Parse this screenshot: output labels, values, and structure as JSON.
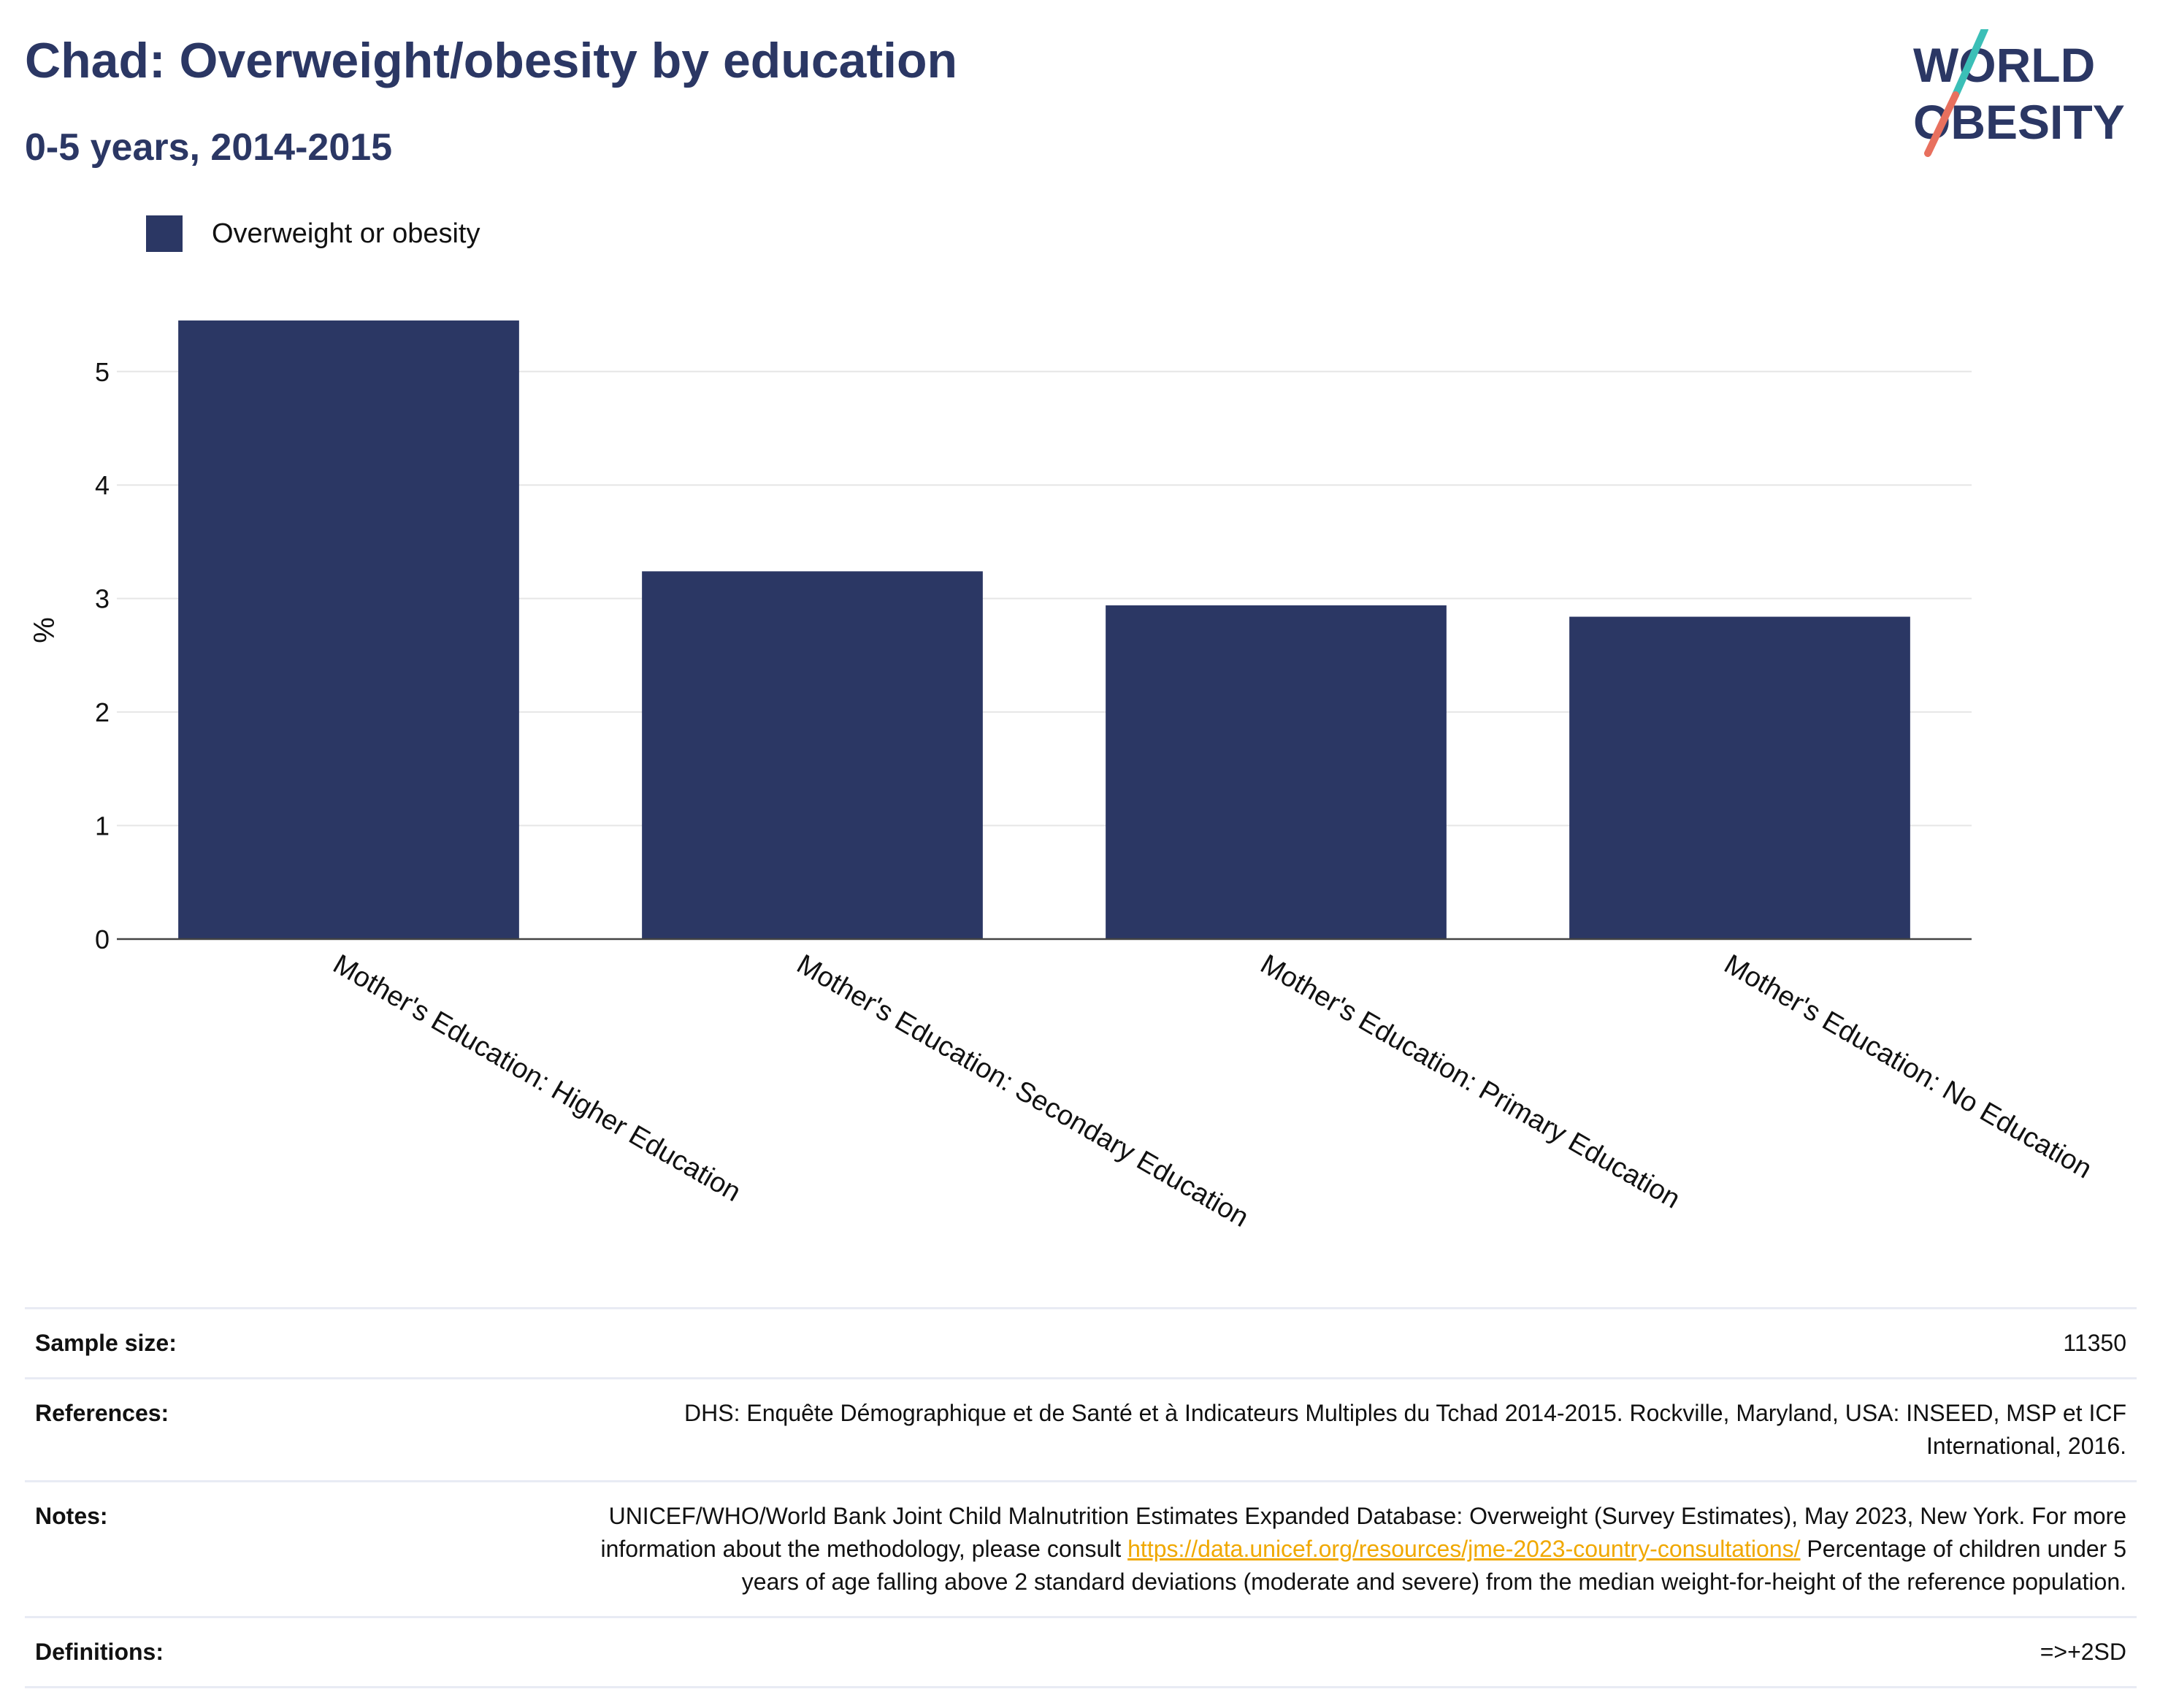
{
  "header": {
    "title": "Chad: Overweight/obesity by education",
    "subtitle": "0-5 years, 2014-2015"
  },
  "logo": {
    "line1": "WORLD",
    "line2": "OBESITY"
  },
  "colors": {
    "bar": "#2b3764",
    "title": "#2b3764",
    "link": "#f0a800",
    "logo_teal": "#3bbfb7",
    "logo_coral": "#e8705e"
  },
  "chart_data": {
    "type": "bar",
    "categories": [
      "Mother's Education: Higher Education",
      "Mother's Education: Secondary Education",
      "Mother's Education: Primary Education",
      "Mother's Education: No Education"
    ],
    "series": [
      {
        "name": "Overweight or obesity",
        "values": [
          5.45,
          3.24,
          2.94,
          2.84
        ]
      }
    ],
    "ylabel": "%",
    "yticks": [
      0,
      1,
      2,
      3,
      4,
      5
    ],
    "ylim": [
      0,
      5.7
    ],
    "grid": true,
    "legend_position": "top-left"
  },
  "meta": {
    "sample_size_label": "Sample size:",
    "sample_size_value": "11350",
    "references_label": "References:",
    "references_value": "DHS: Enquête Démographique et de Santé et à Indicateurs Multiples du Tchad 2014-2015. Rockville, Maryland, USA: INSEED, MSP et ICF International, 2016.",
    "notes_label": "Notes:",
    "notes_text_before": "UNICEF/WHO/World Bank Joint Child Malnutrition Estimates Expanded Database: Overweight (Survey Estimates), May 2023, New York. For more information about the methodology, please consult ",
    "notes_link": "https://data.unicef.org/resources/jme-2023-country-consultations/",
    "notes_text_after": " Percentage of children under 5 years of age falling above 2 standard deviations (moderate and severe) from the median weight-for-height of the reference population.",
    "definitions_label": "Definitions:",
    "definitions_value": "=>+2SD"
  }
}
